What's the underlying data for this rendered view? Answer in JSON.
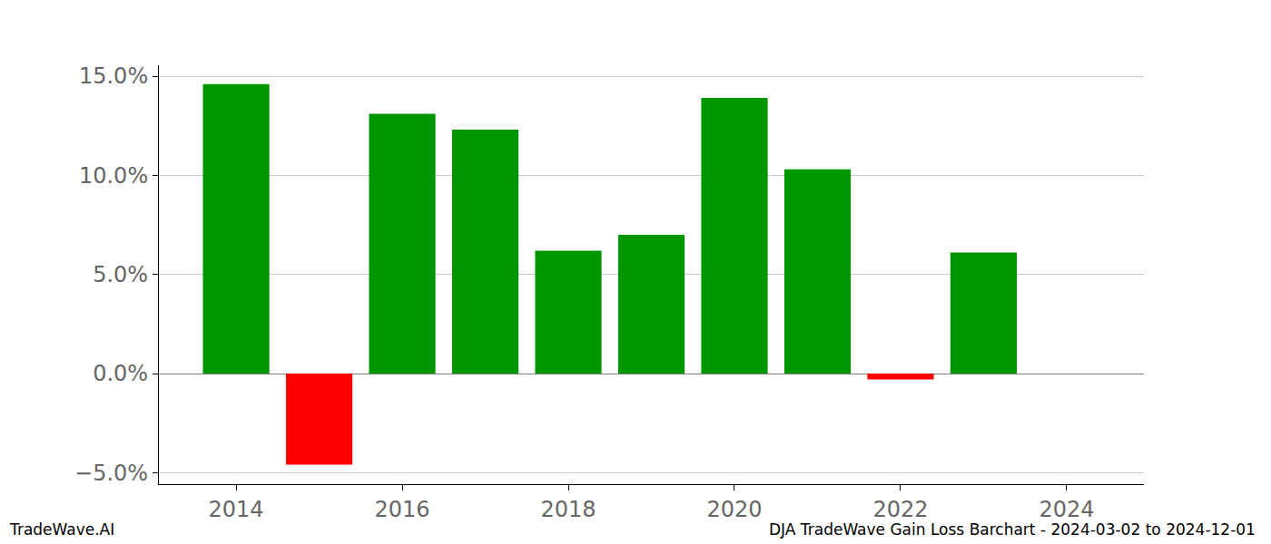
{
  "chart_data": {
    "type": "bar",
    "x": [
      2014,
      2015,
      2016,
      2017,
      2018,
      2019,
      2020,
      2021,
      2022,
      2023
    ],
    "values": [
      14.6,
      -4.6,
      13.1,
      12.3,
      6.2,
      7.0,
      13.9,
      10.3,
      -0.3,
      6.1
    ],
    "colors": [
      "#009600",
      "#ff0000",
      "#009600",
      "#009600",
      "#009600",
      "#009600",
      "#009600",
      "#009600",
      "#ff0000",
      "#009600"
    ],
    "xlim": [
      2013.07,
      2024.93
    ],
    "xticks": [
      2014,
      2016,
      2018,
      2020,
      2022,
      2024
    ],
    "ylim": [
      -5.58,
      15.55
    ],
    "yticks": [
      {
        "value": -5,
        "label": "−5.0%"
      },
      {
        "value": 0,
        "label": "0.0%"
      },
      {
        "value": 5,
        "label": "5.0%"
      },
      {
        "value": 10,
        "label": "10.0%"
      },
      {
        "value": 15,
        "label": "15.0%"
      }
    ],
    "grid": true,
    "annotations": [
      "TradeWave.AI",
      "DJA TradeWave Gain Loss Barchart - 2024-03-02 to 2024-12-01"
    ]
  }
}
